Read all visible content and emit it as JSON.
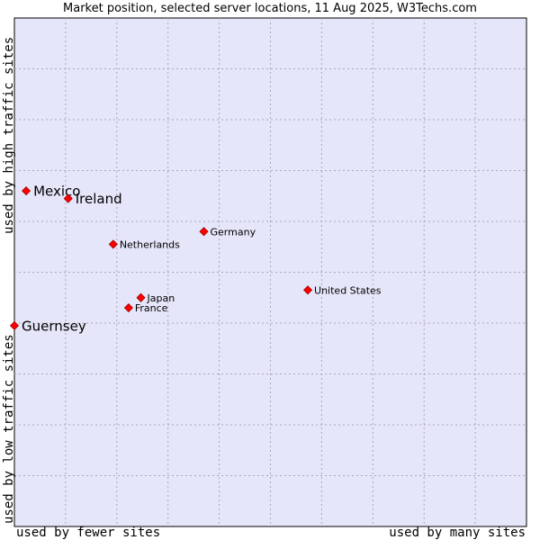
{
  "chart_data": {
    "type": "scatter",
    "title": "Market position, selected server locations, 11 Aug 2025, W3Techs.com",
    "xlabel_left": "used by fewer sites",
    "xlabel_right": "used by many sites",
    "ylabel_top": "used by high traffic sites",
    "ylabel_bottom": "used by low traffic sites",
    "xlim": [
      0,
      10
    ],
    "ylim": [
      0,
      10
    ],
    "grid": true,
    "colors": {
      "plot_background": "#e6e6fa",
      "grid": "#a8a8b8",
      "marker": "#ff0000",
      "marker_stroke": "#990000"
    },
    "points": [
      {
        "label": "Mexico",
        "x": 0.23,
        "y": 6.6,
        "emphasis": true
      },
      {
        "label": "Ireland",
        "x": 1.05,
        "y": 6.45,
        "emphasis": true
      },
      {
        "label": "Guernsey",
        "x": 0.0,
        "y": 3.95,
        "emphasis": true
      },
      {
        "label": "Netherlands",
        "x": 1.93,
        "y": 5.55,
        "emphasis": false
      },
      {
        "label": "Germany",
        "x": 3.7,
        "y": 5.8,
        "emphasis": false
      },
      {
        "label": "Japan",
        "x": 2.47,
        "y": 4.5,
        "emphasis": false
      },
      {
        "label": "France",
        "x": 2.23,
        "y": 4.3,
        "emphasis": false
      },
      {
        "label": "United States",
        "x": 5.73,
        "y": 4.65,
        "emphasis": false
      }
    ]
  }
}
